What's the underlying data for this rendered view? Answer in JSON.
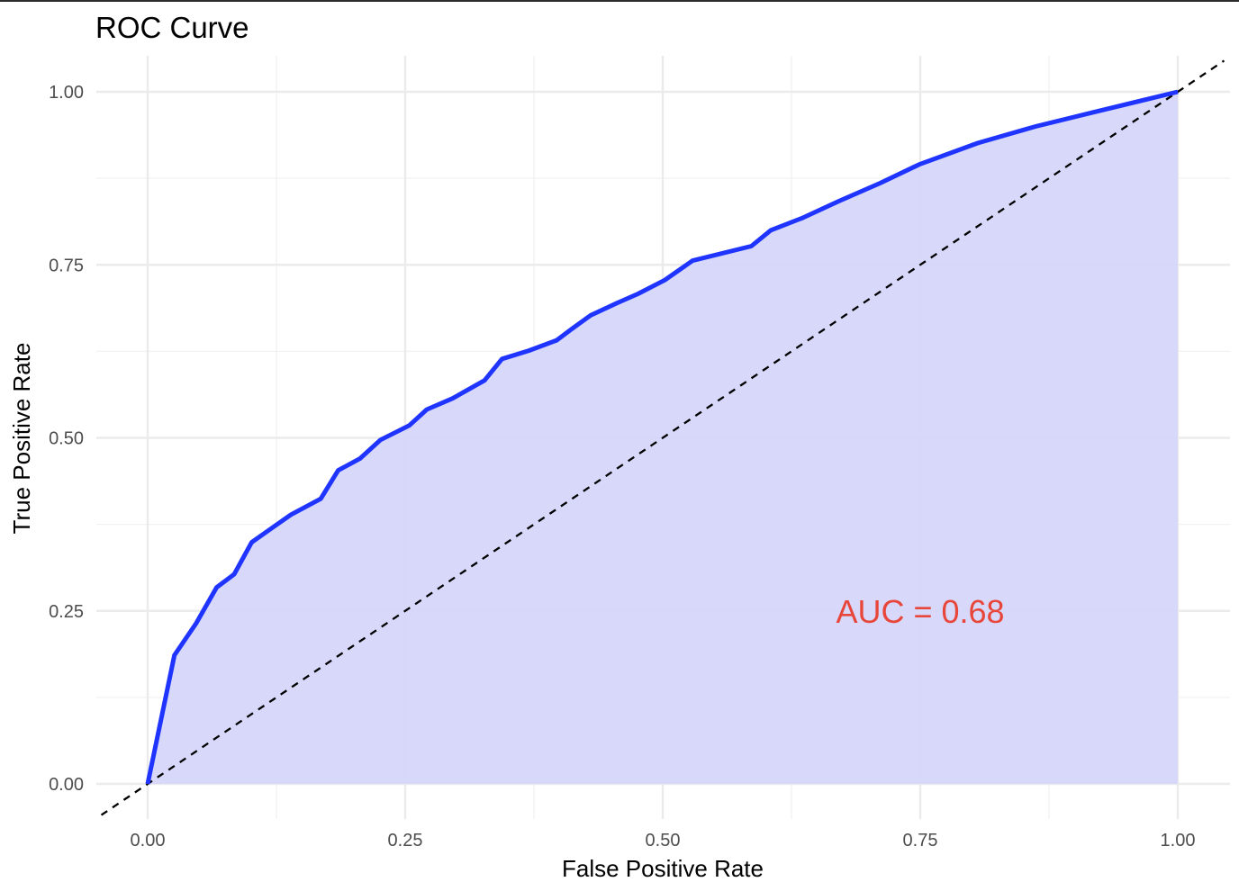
{
  "chart_data": {
    "type": "area",
    "title": "ROC Curve",
    "xlabel": "False Positive Rate",
    "ylabel": "True Positive Rate",
    "xlim": [
      0,
      1
    ],
    "ylim": [
      0,
      1
    ],
    "x_ticks": [
      "0.00",
      "0.25",
      "0.50",
      "0.75",
      "1.00"
    ],
    "y_ticks": [
      "0.00",
      "0.25",
      "0.50",
      "0.75",
      "1.00"
    ],
    "grid": true,
    "series": [
      {
        "x": [
          0.0,
          0.026,
          0.047,
          0.067,
          0.084,
          0.101,
          0.119,
          0.139,
          0.168,
          0.185,
          0.206,
          0.226,
          0.254,
          0.271,
          0.296,
          0.327,
          0.344,
          0.37,
          0.397,
          0.415,
          0.43,
          0.456,
          0.476,
          0.502,
          0.529,
          0.586,
          0.605,
          0.636,
          0.671,
          0.711,
          0.749,
          0.806,
          0.862,
          0.917,
          1.0
        ],
        "y": [
          0.0,
          0.186,
          0.232,
          0.284,
          0.303,
          0.349,
          0.368,
          0.389,
          0.412,
          0.453,
          0.47,
          0.497,
          0.518,
          0.541,
          0.557,
          0.583,
          0.614,
          0.626,
          0.641,
          0.661,
          0.677,
          0.695,
          0.708,
          0.728,
          0.756,
          0.777,
          0.8,
          0.818,
          0.842,
          0.868,
          0.895,
          0.926,
          0.95,
          0.97,
          1.0
        ],
        "color": "#1f35ff",
        "fill": "#d5d6fa"
      }
    ],
    "reference_line": {
      "from": [
        0,
        0
      ],
      "to": [
        1,
        1
      ],
      "style": "dashed",
      "color": "#000000"
    },
    "annotation": {
      "text": "AUC = 0.68",
      "x": 0.75,
      "y": 0.25,
      "color": "#e8463a"
    }
  }
}
